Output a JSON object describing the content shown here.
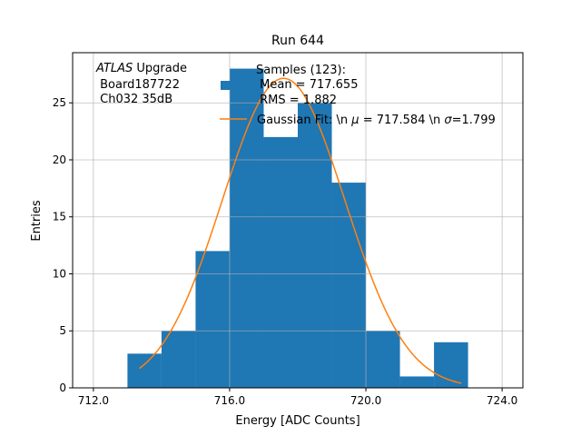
{
  "chart_data": {
    "type": "bar",
    "title": "Run 644",
    "xlabel": "Energy [ADC Counts]",
    "ylabel": "Entries",
    "xlim": [
      711.39,
      724.61
    ],
    "ylim": [
      0,
      29.4
    ],
    "grid": true,
    "bin_width": 1,
    "bins": [
      713,
      714,
      715,
      716,
      717,
      718,
      719,
      720,
      721,
      722
    ],
    "values": [
      3,
      5,
      12,
      28,
      22,
      25,
      18,
      5,
      1,
      4
    ],
    "x_ticks": [
      712,
      716,
      720,
      724
    ],
    "x_tick_labels": [
      "712.0",
      "716.0",
      "720.0",
      "724.0"
    ],
    "y_ticks": [
      0,
      5,
      10,
      15,
      20,
      25
    ],
    "y_tick_labels": [
      "0",
      "5",
      "10",
      "15",
      "20",
      "25"
    ],
    "fit": {
      "mu": 717.584,
      "sigma": 1.799,
      "amplitude": 27.15,
      "x_range": [
        713.35,
        722.8
      ]
    },
    "annotation": {
      "italic": "ATLAS",
      "line1_rest": " Upgrade",
      "line2": " Board187722",
      "line3": " Ch032 35dB"
    },
    "legend": {
      "placement": "top-center",
      "entries": [
        {
          "lines": [
            "Samples (123):",
            " Mean = 717.655",
            " RMS = 1.882"
          ]
        },
        {
          "pre": "Gaussian Fit: \\n ",
          "mu_sym": "μ",
          "mid": " = 717.584 \\n ",
          "sigma_sym": "σ",
          "post": "=1.799"
        }
      ]
    },
    "colors": {
      "bars": "#1f77b4",
      "fit": "#ff7f0e",
      "grid": "#b0b0b0"
    }
  }
}
